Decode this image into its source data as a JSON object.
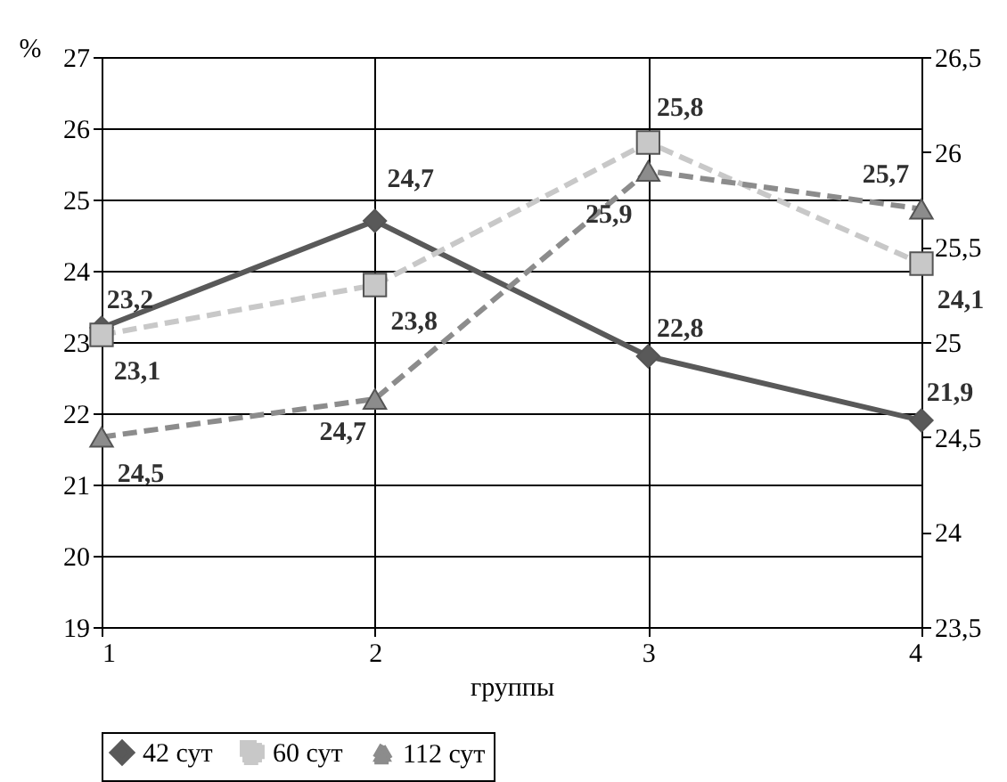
{
  "chart_data": {
    "type": "line",
    "xlabel": "группы",
    "ylabel": "%",
    "x": [
      1,
      2,
      3,
      4
    ],
    "xlim": [
      1,
      4
    ],
    "xticks": [
      1,
      2,
      3,
      4
    ],
    "ylim": [
      19,
      27
    ],
    "yticks": [
      19,
      20,
      21,
      22,
      23,
      24,
      25,
      26,
      27
    ],
    "y2lim": [
      23.5,
      26.5
    ],
    "y2ticks": [
      {
        "value": 23.5,
        "label": "23,5"
      },
      {
        "value": 24,
        "label": "24"
      },
      {
        "value": 24.5,
        "label": "24,5"
      },
      {
        "value": 25,
        "label": "25"
      },
      {
        "value": 25.5,
        "label": "25,5"
      },
      {
        "value": 26,
        "label": "26"
      },
      {
        "value": 26.5,
        "label": "26,5"
      }
    ],
    "grid": true,
    "legend": "bottom",
    "series": [
      {
        "name": "42 сут",
        "color": "#595959",
        "values": [
          23.2,
          24.7,
          22.8,
          21.9
        ],
        "value_labels": [
          "23,2",
          "24,7",
          "22,8",
          "21,9"
        ],
        "marker": "diamond",
        "line_style": "solid"
      },
      {
        "name": "60 сут",
        "color": "#c8c8c8",
        "values": [
          23.1,
          23.8,
          25.8,
          24.1
        ],
        "value_labels": [
          "23,1",
          "23,8",
          "25,8",
          "24,1"
        ],
        "marker": "square",
        "line_style": "dashed"
      },
      {
        "name": "112 сут",
        "color": "#8c8c8c",
        "values": [
          24.5,
          24.7,
          25.9,
          25.7
        ],
        "value_labels": [
          "24,5",
          "24,7",
          "25,9",
          "25,7"
        ],
        "marker": "triangle",
        "line_style": "dashed",
        "axis": "y2"
      }
    ]
  }
}
